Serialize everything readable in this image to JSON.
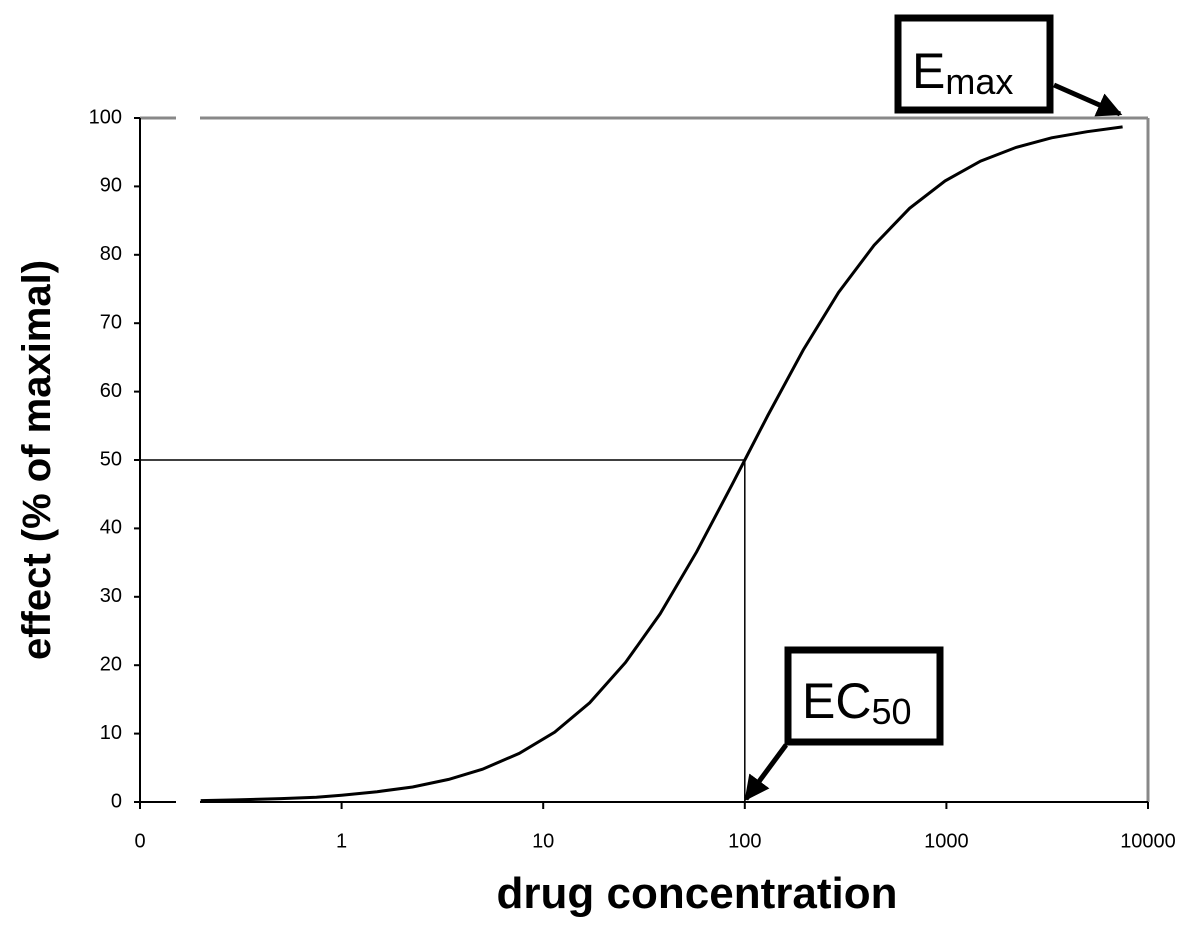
{
  "chart_data": {
    "type": "line",
    "x_label": "drug concentration",
    "y_label": "effect (% of maximal)",
    "x": [
      0.2,
      0.3,
      0.5,
      0.75,
      1,
      1.5,
      2.25,
      3.4,
      5,
      7.6,
      11.4,
      17,
      25.6,
      38,
      57.7,
      86.5,
      100,
      130,
      195,
      292,
      438,
      657,
      985,
      1478,
      2217,
      3325,
      4988,
      7482
    ],
    "series": [
      {
        "color": "#000000",
        "values": [
          0.2,
          0.3,
          0.5,
          0.7,
          1.0,
          1.5,
          2.2,
          3.3,
          4.8,
          7.1,
          10.2,
          14.5,
          20.4,
          27.5,
          36.6,
          46.4,
          50,
          56.5,
          66.1,
          74.5,
          81.4,
          86.8,
          90.8,
          93.7,
          95.7,
          97.1,
          98.0,
          98.7
        ]
      }
    ],
    "xlog": true,
    "xlim": [
      0.1,
      10000
    ],
    "xticks": [
      {
        "value": 0.1,
        "label": "0"
      },
      1,
      10,
      100,
      1000,
      10000
    ],
    "ylim": [
      0,
      100
    ],
    "yticks": [
      0,
      10,
      20,
      30,
      40,
      50,
      60,
      70,
      80,
      90,
      100
    ],
    "reference": {
      "x": 100,
      "y": 50
    },
    "annotations": [
      {
        "text": "E",
        "sub": "max"
      },
      {
        "text": "EC",
        "sub": "50"
      }
    ]
  }
}
